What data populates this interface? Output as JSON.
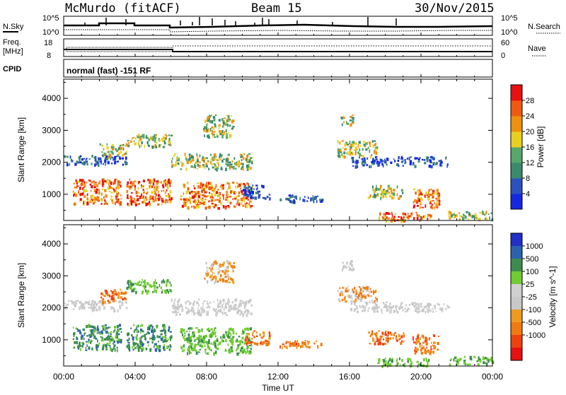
{
  "header": {
    "station": "McMurdo (fitACF)",
    "beam": "Beam 15",
    "date": "30/Nov/2015"
  },
  "top_panel": {
    "left_label": "N.Sky",
    "right_label": "N.Search",
    "ticks_left": [
      "10^5",
      "10^0"
    ],
    "ticks_right": [
      "10^5",
      "10^0"
    ],
    "freq_label_line1": "Freq.",
    "freq_label_line2": "[MHz]",
    "freq_ticks": [
      "18",
      "8"
    ],
    "nave_label": "Nave",
    "nave_ticks": [
      "60",
      "0"
    ],
    "cpid_label": "CPID",
    "cpid_text": "normal (fast) -151 RF"
  },
  "x_axis": {
    "title": "Time UT",
    "ticks": [
      "00:00",
      "04:00",
      "08:00",
      "12:00",
      "16:00",
      "20:00",
      "00:00"
    ]
  },
  "colors": {
    "power_scale": [
      "#1428e0",
      "#2a52bf",
      "#3a8a6e",
      "#55a86a",
      "#e8d020",
      "#f09010",
      "#f05a10",
      "#e81010"
    ],
    "velocity_scale": [
      "#e81010",
      "#f04010",
      "#f07a10",
      "#f09a20",
      "#c8c8c8",
      "#d0d0d0",
      "#70cc30",
      "#3c8c50",
      "#2a62b0",
      "#2030c8"
    ]
  },
  "chart_data": [
    {
      "type": "heatmap",
      "title": "",
      "xlabel": "Time UT",
      "ylabel": "Slant Range [km]",
      "x_ticks": [
        "00:00",
        "04:00",
        "08:00",
        "12:00",
        "16:00",
        "20:00",
        "00:00"
      ],
      "ylim": [
        180,
        4600
      ],
      "y_ticks": [
        1000,
        2000,
        3000,
        4000
      ],
      "colorbar": {
        "label": "Power [dB]",
        "ticks": [
          4,
          8,
          12,
          16,
          20,
          24,
          28
        ]
      },
      "echo_regions": [
        {
          "t0": 0.0,
          "t1": 3.5,
          "r0": 1950,
          "r1": 2250,
          "level": "low"
        },
        {
          "t0": 0.5,
          "t1": 3.2,
          "r0": 700,
          "r1": 1500,
          "level": "high"
        },
        {
          "t0": 2.0,
          "t1": 3.5,
          "r0": 2200,
          "r1": 2600,
          "level": "mid"
        },
        {
          "t0": 3.5,
          "t1": 6.0,
          "r0": 2500,
          "r1": 2900,
          "level": "mid"
        },
        {
          "t0": 3.5,
          "t1": 6.0,
          "r0": 700,
          "r1": 1500,
          "level": "high"
        },
        {
          "t0": 6.5,
          "t1": 10.5,
          "r0": 600,
          "r1": 1400,
          "level": "high"
        },
        {
          "t0": 6.0,
          "t1": 10.5,
          "r0": 1800,
          "r1": 2300,
          "level": "mid"
        },
        {
          "t0": 7.8,
          "t1": 9.5,
          "r0": 2800,
          "r1": 3500,
          "level": "mid"
        },
        {
          "t0": 10.0,
          "t1": 11.5,
          "r0": 900,
          "r1": 1300,
          "level": "low"
        },
        {
          "t0": 12.0,
          "t1": 14.5,
          "r0": 800,
          "r1": 1000,
          "level": "low"
        },
        {
          "t0": 15.5,
          "t1": 16.2,
          "r0": 3200,
          "r1": 3500,
          "level": "mid"
        },
        {
          "t0": 15.3,
          "t1": 17.5,
          "r0": 2200,
          "r1": 2700,
          "level": "mid"
        },
        {
          "t0": 16.0,
          "t1": 21.5,
          "r0": 1900,
          "r1": 2200,
          "level": "low"
        },
        {
          "t0": 17.0,
          "t1": 19.0,
          "r0": 900,
          "r1": 1300,
          "level": "mid"
        },
        {
          "t0": 19.5,
          "t1": 21.0,
          "r0": 600,
          "r1": 1200,
          "level": "high"
        },
        {
          "t0": 17.5,
          "t1": 20.5,
          "r0": 200,
          "r1": 450,
          "level": "high"
        },
        {
          "t0": 21.5,
          "t1": 24.0,
          "r0": 250,
          "r1": 500,
          "level": "mid"
        }
      ]
    },
    {
      "type": "heatmap",
      "title": "",
      "xlabel": "Time UT",
      "ylabel": "Slant Range [km]",
      "x_ticks": [
        "00:00",
        "04:00",
        "08:00",
        "12:00",
        "16:00",
        "20:00",
        "00:00"
      ],
      "ylim": [
        180,
        4600
      ],
      "y_ticks": [
        1000,
        2000,
        3000,
        4000
      ],
      "colorbar": {
        "label": "Velocity [m s^-1]",
        "ticks": [
          1000,
          500,
          100,
          25,
          -25,
          -100,
          -500,
          -1000
        ]
      },
      "echo_regions": [
        {
          "t0": 0.0,
          "t1": 3.5,
          "r0": 1950,
          "r1": 2250,
          "level": "zero"
        },
        {
          "t0": 0.5,
          "t1": 3.2,
          "r0": 700,
          "r1": 1500,
          "level": "pos_mid"
        },
        {
          "t0": 2.0,
          "t1": 3.5,
          "r0": 2200,
          "r1": 2600,
          "level": "neg_mid"
        },
        {
          "t0": 3.5,
          "t1": 6.0,
          "r0": 2500,
          "r1": 2900,
          "level": "pos_low"
        },
        {
          "t0": 3.5,
          "t1": 6.0,
          "r0": 700,
          "r1": 1500,
          "level": "pos_mid"
        },
        {
          "t0": 6.5,
          "t1": 10.5,
          "r0": 600,
          "r1": 1400,
          "level": "pos_low"
        },
        {
          "t0": 6.0,
          "t1": 10.5,
          "r0": 1800,
          "r1": 2300,
          "level": "zero"
        },
        {
          "t0": 7.8,
          "t1": 9.5,
          "r0": 2800,
          "r1": 3500,
          "level": "neg_low"
        },
        {
          "t0": 10.0,
          "t1": 11.5,
          "r0": 900,
          "r1": 1300,
          "level": "neg_mid"
        },
        {
          "t0": 12.0,
          "t1": 14.5,
          "r0": 800,
          "r1": 1000,
          "level": "neg_mid"
        },
        {
          "t0": 15.5,
          "t1": 16.2,
          "r0": 3200,
          "r1": 3500,
          "level": "zero"
        },
        {
          "t0": 15.3,
          "t1": 17.5,
          "r0": 2200,
          "r1": 2700,
          "level": "neg_low"
        },
        {
          "t0": 16.0,
          "t1": 21.5,
          "r0": 1900,
          "r1": 2200,
          "level": "zero"
        },
        {
          "t0": 17.0,
          "t1": 19.0,
          "r0": 900,
          "r1": 1300,
          "level": "neg_mid"
        },
        {
          "t0": 19.5,
          "t1": 21.0,
          "r0": 600,
          "r1": 1200,
          "level": "neg_mid"
        },
        {
          "t0": 17.5,
          "t1": 20.5,
          "r0": 200,
          "r1": 450,
          "level": "pos_low"
        },
        {
          "t0": 21.5,
          "t1": 24.0,
          "r0": 250,
          "r1": 500,
          "level": "pos_low"
        }
      ]
    }
  ]
}
